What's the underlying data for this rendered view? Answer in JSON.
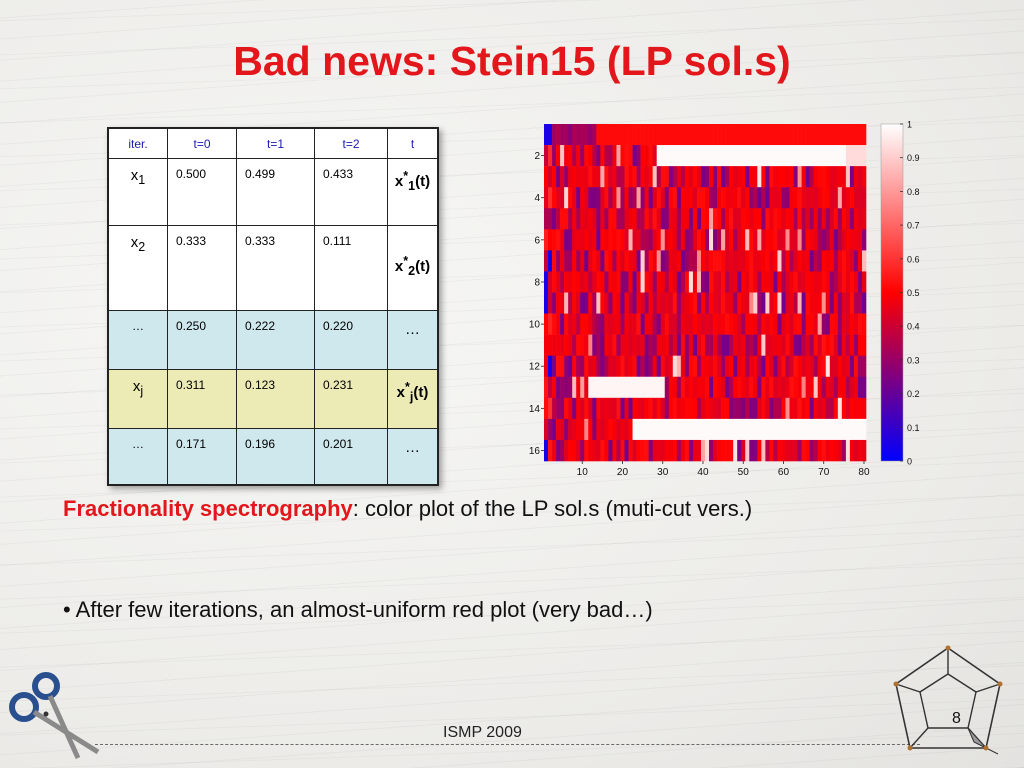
{
  "slide": {
    "title": "Bad news: Stein15 (LP sol.s)",
    "footer": "ISMP 2009",
    "page_number": "8"
  },
  "table": {
    "headers": [
      "iter.",
      "t=0",
      "t=1",
      "t=2",
      "t"
    ],
    "rows": [
      {
        "label_main": "x",
        "label_sub": "1",
        "values": [
          "0.500",
          "0.499",
          "0.433"
        ],
        "result_main": "x",
        "result_sup": "*",
        "result_sub": "1",
        "result_tail": "(t)"
      },
      {
        "label_main": "x",
        "label_sub": "2",
        "values": [
          "0.333",
          "0.333",
          "0.111"
        ],
        "result_main": "x",
        "result_sup": "*",
        "result_sub": "2",
        "result_tail": "(t)"
      },
      {
        "label": "…",
        "values": [
          "0.250",
          "0.222",
          "0.220"
        ],
        "result": "…"
      },
      {
        "label_main": "x",
        "label_sub": "j",
        "values": [
          "0.311",
          "0.123",
          "0.231"
        ],
        "result_main": "x",
        "result_sup": "*",
        "result_sub": "j",
        "result_tail": "(t)"
      },
      {
        "label": "…",
        "values": [
          "0.171",
          "0.196",
          "0.201"
        ],
        "result": "…"
      }
    ]
  },
  "chart_data": {
    "type": "heatmap",
    "x_ticks": [
      "10",
      "20",
      "30",
      "40",
      "50",
      "60",
      "70",
      "80"
    ],
    "y_ticks": [
      "2",
      "4",
      "6",
      "8",
      "10",
      "12",
      "14",
      "16"
    ],
    "x_range": [
      1,
      80
    ],
    "y_range": [
      1,
      16
    ],
    "colorbar_ticks": [
      "0",
      "0.1",
      "0.2",
      "0.3",
      "0.4",
      "0.5",
      "0.6",
      "0.7",
      "0.8",
      "0.9",
      "1"
    ],
    "colorbar_range": [
      0,
      1
    ],
    "colormap": [
      "#0000ff",
      "#ff0000",
      "#ffffff"
    ]
  },
  "caption": {
    "highlight": "Fractionality spectrography",
    "rest": ": color plot of the LP sol.s (muti-cut vers.)"
  },
  "bullet": "• After few iterations, an almost-uniform red plot (very bad…)"
}
